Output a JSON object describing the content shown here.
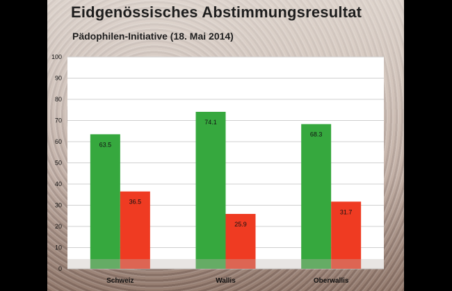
{
  "title": "Eidgenössisches Abstimmungsresultat",
  "subtitle": "Pädophilen-Initiative (18. Mai 2014)",
  "colors": {
    "yes": "#36a83e",
    "no": "#ef3b22",
    "plot_bg": "#ffffff",
    "grid": "#cfcfcf"
  },
  "chart_data": {
    "type": "bar",
    "categories": [
      "Schweiz",
      "Wallis",
      "Oberwallis"
    ],
    "series": [
      {
        "values": [
          63.5,
          74.1,
          68.3
        ]
      },
      {
        "values": [
          36.5,
          25.9,
          31.7
        ]
      }
    ],
    "ylim": [
      0,
      100
    ],
    "yticks": [
      0,
      10,
      20,
      30,
      40,
      50,
      60,
      70,
      80,
      90,
      100
    ],
    "grid": true,
    "title": "",
    "xlabel": "",
    "ylabel": ""
  }
}
